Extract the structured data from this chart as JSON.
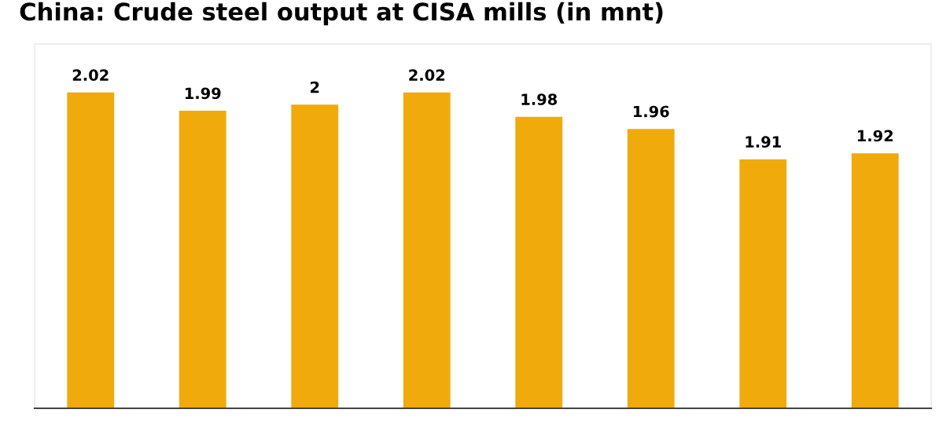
{
  "chart_data": {
    "type": "bar",
    "title": "China: Crude steel output at CISA mills (in mnt)",
    "categories": [
      null,
      null,
      null,
      null,
      null,
      null,
      null,
      null
    ],
    "values": [
      2.02,
      1.99,
      2,
      2.02,
      1.98,
      1.96,
      1.91,
      1.92
    ],
    "color": "#f0aa0b",
    "ylim": [
      1.5,
      2.1
    ],
    "data_labels": true,
    "grid": false,
    "legend": false
  }
}
